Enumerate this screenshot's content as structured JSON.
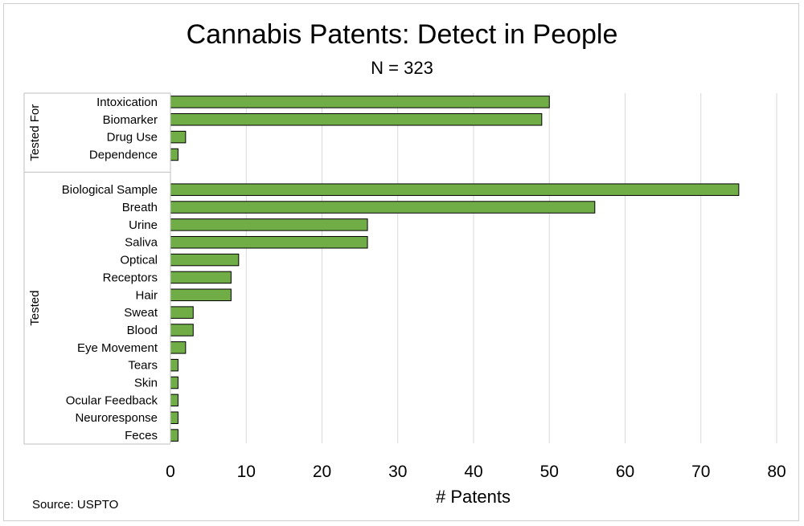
{
  "chart_data": {
    "type": "bar",
    "orientation": "horizontal",
    "title": "Cannabis Patents: Detect in People",
    "subtitle": "N = 323",
    "xlabel": "# Patents",
    "ylabel": "",
    "source": "Source: USPTO",
    "xlim": [
      0,
      80
    ],
    "xticks": [
      0,
      10,
      20,
      30,
      40,
      50,
      60,
      70,
      80
    ],
    "grid": "vertical",
    "bar_color": "#70ad47",
    "bar_edge_color": "#000000",
    "groups": [
      {
        "name": "Tested For",
        "categories": [
          "Intoxication",
          "Biomarker",
          "Drug Use",
          "Dependence"
        ],
        "values": [
          50,
          49,
          2,
          1
        ]
      },
      {
        "name": "Tested",
        "categories": [
          "Biological Sample",
          "Breath",
          "Urine",
          "Saliva",
          "Optical",
          "Receptors",
          "Hair",
          "Sweat",
          "Blood",
          "Eye Movement",
          "Tears",
          "Skin",
          "Ocular Feedback",
          "Neuroresponse",
          "Feces"
        ],
        "values": [
          75,
          56,
          26,
          26,
          9,
          8,
          8,
          3,
          3,
          2,
          1,
          1,
          1,
          1,
          1
        ]
      }
    ]
  }
}
